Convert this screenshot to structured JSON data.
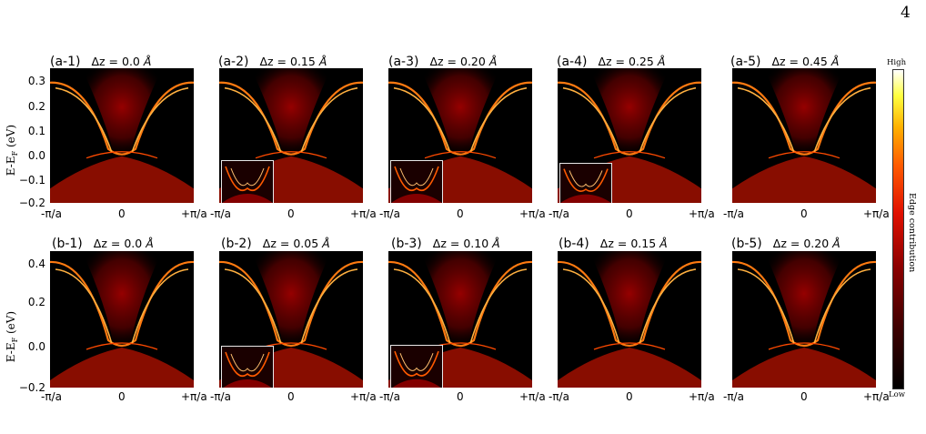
{
  "page_number": "4",
  "colorbar": {
    "high_label": "High",
    "low_label": "Low",
    "title": "Edge contribution"
  },
  "row_a": {
    "ylabel": "E-E$_F$ (eV)",
    "ylabel_text": "E-E",
    "ylabel_sub": "F",
    "ylabel_unit": " (eV)",
    "yticks": [
      "0.3",
      "0.2",
      "0.1",
      "0.0",
      "−0.1",
      "−0.2"
    ],
    "xticks": [
      "-π/a",
      "0",
      "+π/a"
    ],
    "panels": [
      {
        "tag": "(a-1)",
        "dz": "Δz = 0.0",
        "unit": "Å",
        "inset": false
      },
      {
        "tag": "(a-2)",
        "dz": "Δz = 0.15",
        "unit": "Å",
        "inset": true
      },
      {
        "tag": "(a-3)",
        "dz": "Δz = 0.20",
        "unit": "Å",
        "inset": true
      },
      {
        "tag": "(a-4)",
        "dz": "Δz = 0.25",
        "unit": "Å",
        "inset": true
      },
      {
        "tag": "(a-5)",
        "dz": "Δz = 0.45",
        "unit": "Å",
        "inset": false
      }
    ]
  },
  "row_b": {
    "ylabel_text": "E-E",
    "ylabel_sub": "F",
    "ylabel_unit": " (eV)",
    "yticks": [
      "0.4",
      "0.2",
      "0.0",
      "−0.2"
    ],
    "xticks": [
      "-π/a",
      "0",
      "+π/a"
    ],
    "panels": [
      {
        "tag": "(b-1)",
        "dz": "Δz = 0.0",
        "unit": "Å",
        "inset": false
      },
      {
        "tag": "(b-2)",
        "dz": "Δz = 0.05",
        "unit": "Å",
        "inset": true
      },
      {
        "tag": "(b-3)",
        "dz": "Δz = 0.10",
        "unit": "Å",
        "inset": true
      },
      {
        "tag": "(b-4)",
        "dz": "Δz = 0.15",
        "unit": "Å",
        "inset": false
      },
      {
        "tag": "(b-5)",
        "dz": "Δz = 0.20",
        "unit": "Å",
        "inset": false
      }
    ]
  },
  "colors": {
    "band_bright": "#ffd27a",
    "band_mid": "#ff3a00",
    "band_dark": "#a00000",
    "background": "#000000"
  }
}
